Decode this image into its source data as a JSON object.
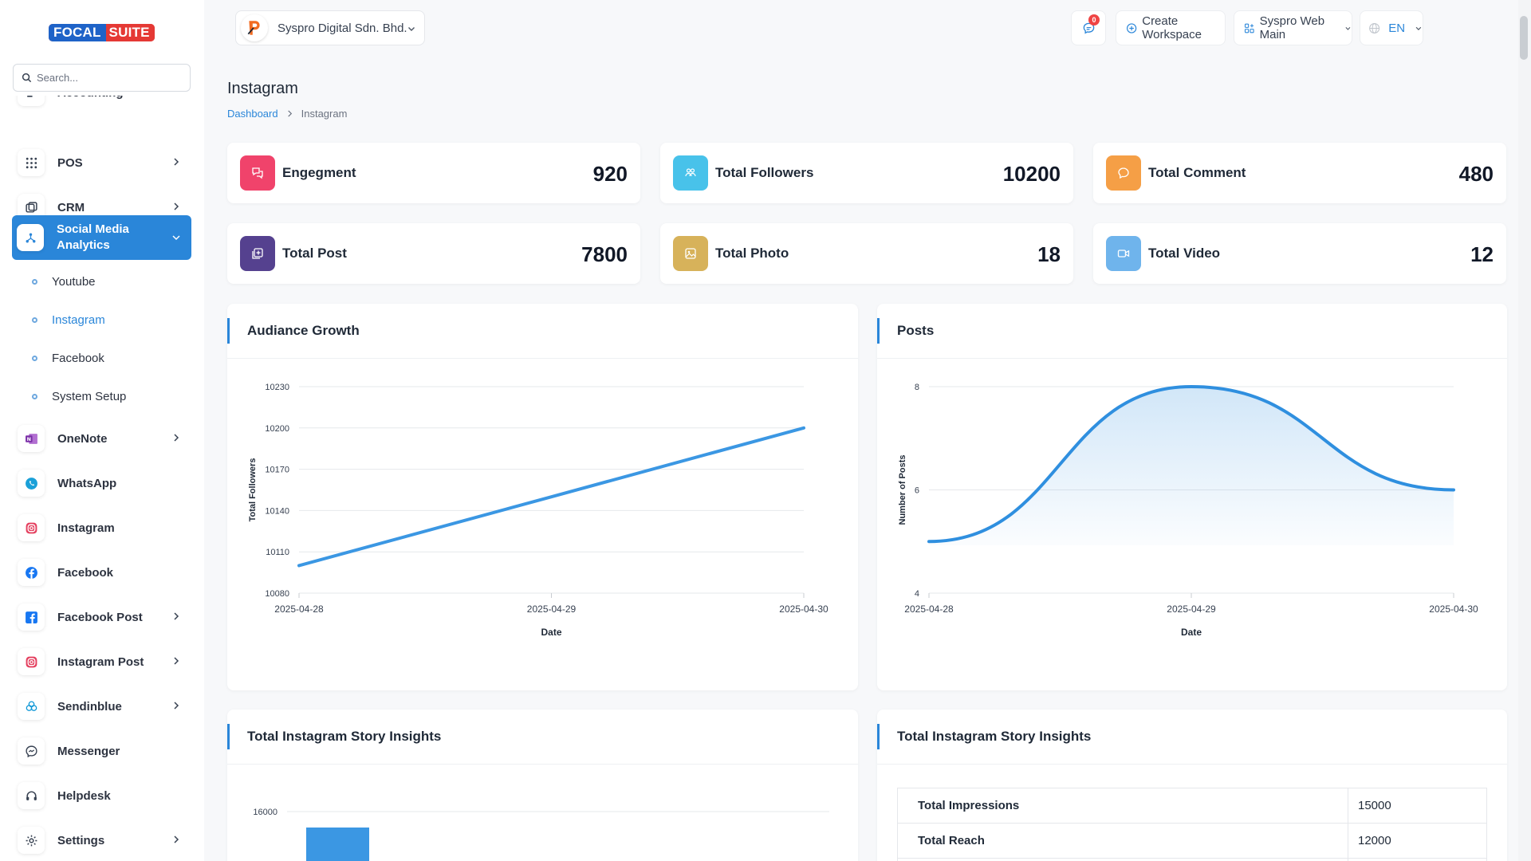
{
  "app": {
    "logo_left": "FOCAL",
    "logo_right": "SUITE",
    "brand_colors": {
      "primary": "#2a86d9",
      "logo_blue": "#1e63c8",
      "logo_red": "#e53935"
    }
  },
  "search": {
    "placeholder": "Search..."
  },
  "sidebar": {
    "items": [
      {
        "label": "Accounting",
        "icon": "accounting-icon"
      },
      {
        "label": "POS",
        "icon": "grid-icon"
      },
      {
        "label": "CRM",
        "icon": "crm-icon"
      },
      {
        "label": "Social Media Analytics",
        "icon": "share-icon"
      },
      {
        "label": "OneNote",
        "icon": "onenote-icon"
      },
      {
        "label": "WhatsApp",
        "icon": "whatsapp-icon"
      },
      {
        "label": "Instagram",
        "icon": "instagram-icon"
      },
      {
        "label": "Facebook",
        "icon": "facebook-icon"
      },
      {
        "label": "Facebook Post",
        "icon": "facebook-post-icon"
      },
      {
        "label": "Instagram Post",
        "icon": "instagram-post-icon"
      },
      {
        "label": "Sendinblue",
        "icon": "sendinblue-icon"
      },
      {
        "label": "Messenger",
        "icon": "messenger-icon"
      },
      {
        "label": "Helpdesk",
        "icon": "headset-icon"
      },
      {
        "label": "Settings",
        "icon": "gear-icon"
      }
    ],
    "submenu": [
      "Youtube",
      "Instagram",
      "Facebook",
      "System Setup"
    ]
  },
  "topbar": {
    "company": "Syspro Digital Sdn. Bhd.",
    "notifications": "0",
    "create_workspace": "Create Workspace",
    "workspace": "Syspro Web Main",
    "language": "EN"
  },
  "page": {
    "title": "Instagram",
    "breadcrumb": [
      "Dashboard",
      "Instagram"
    ]
  },
  "stats": [
    {
      "label": "Engegment",
      "value": "920",
      "color": "#f0436b",
      "icon": "chat-bubbles-icon"
    },
    {
      "label": "Total Followers",
      "value": "10200",
      "color": "#48c2ea",
      "icon": "users-icon"
    },
    {
      "label": "Total Comment",
      "value": "480",
      "color": "#f59f46",
      "icon": "comment-icon"
    },
    {
      "label": "Total Post",
      "value": "7800",
      "color": "#55418f",
      "icon": "post-icon"
    },
    {
      "label": "Total Photo",
      "value": "18",
      "color": "#d7b25a",
      "icon": "photo-icon"
    },
    {
      "label": "Total Video",
      "value": "12",
      "color": "#6fb4ec",
      "icon": "video-icon"
    }
  ],
  "panels": {
    "audience": "Audiance Growth",
    "posts": "Posts",
    "story_chart": "Total Instagram Story Insights",
    "story_table": "Total Instagram Story Insights"
  },
  "story_table": [
    {
      "key": "Total Impressions",
      "value": "15000"
    },
    {
      "key": "Total Reach",
      "value": "12000"
    }
  ],
  "chart_data": [
    {
      "type": "line",
      "title": "Audiance Growth",
      "xlabel": "Date",
      "ylabel": "Total Followers",
      "x": [
        "2025-04-28",
        "2025-04-29",
        "2025-04-30"
      ],
      "series": [
        {
          "values": [
            10100,
            10150,
            10200
          ]
        }
      ],
      "ylim": [
        10080,
        10230
      ],
      "yticks": [
        10080,
        10110,
        10140,
        10170,
        10200,
        10230
      ],
      "color": "#3b97e3",
      "grid": true
    },
    {
      "type": "area",
      "title": "Posts",
      "xlabel": "Date",
      "ylabel": "Number of Posts",
      "x": [
        "2025-04-28",
        "2025-04-29",
        "2025-04-30"
      ],
      "series": [
        {
          "values": [
            5,
            8,
            6
          ]
        }
      ],
      "ylim": [
        4,
        8
      ],
      "yticks": [
        4,
        6,
        8
      ],
      "color": "#2f8fdf",
      "grid": true
    },
    {
      "type": "bar",
      "title": "Total Instagram Story Insights",
      "yticks_visible": [
        16000
      ],
      "color": "#3b97e3"
    }
  ]
}
